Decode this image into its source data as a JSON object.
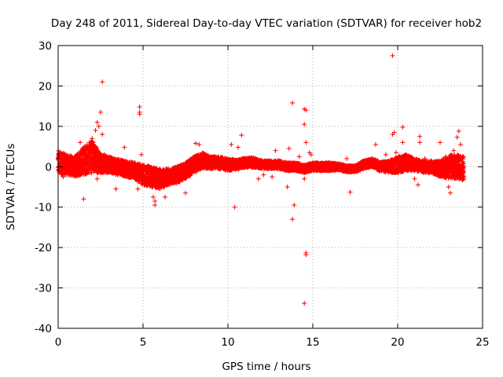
{
  "chart_data": {
    "type": "scatter",
    "title": "Day 248 of 2011, Sidereal Day-to-day VTEC variation (SDTVAR) for receiver hob2",
    "xlabel": "GPS time / hours",
    "ylabel": "SDTVAR / TECUs",
    "xlim": [
      0,
      25
    ],
    "ylim": [
      -40,
      30
    ],
    "xticks": [
      0,
      5,
      10,
      15,
      20,
      25
    ],
    "yticks": [
      -40,
      -30,
      -20,
      -10,
      0,
      10,
      20,
      30
    ],
    "xtick_labels": [
      "0",
      "5",
      "10",
      "15",
      "20",
      "25"
    ],
    "ytick_labels": [
      "-40",
      "-30",
      "-20",
      "-10",
      "0",
      "10",
      "20",
      "30"
    ],
    "grid": true,
    "marker": "+",
    "color": "#ff0000",
    "series": [
      {
        "name": "SDTVAR",
        "band_profile": {
          "x": [
            0.0,
            0.5,
            1.0,
            1.5,
            2.0,
            2.5,
            3.0,
            3.5,
            4.0,
            4.5,
            5.0,
            5.5,
            6.0,
            6.5,
            7.0,
            7.5,
            8.0,
            8.5,
            9.0,
            9.5,
            10.0,
            10.5,
            11.0,
            11.5,
            12.0,
            12.5,
            13.0,
            13.5,
            14.0,
            14.5,
            15.0,
            15.5,
            16.0,
            16.5,
            17.0,
            17.5,
            18.0,
            18.5,
            19.0,
            19.5,
            20.0,
            20.5,
            21.0,
            21.5,
            22.0,
            22.5,
            23.0,
            23.5,
            23.9
          ],
          "center": [
            1.0,
            0.5,
            0.0,
            1.5,
            2.5,
            1.0,
            0.5,
            0.0,
            -0.5,
            -1.0,
            -2.0,
            -2.5,
            -3.0,
            -2.5,
            -2.0,
            -1.0,
            0.5,
            1.5,
            1.0,
            1.0,
            0.5,
            0.5,
            1.0,
            1.0,
            0.5,
            0.5,
            0.5,
            0.0,
            0.0,
            -0.5,
            0.0,
            0.0,
            0.0,
            0.0,
            -0.5,
            -0.5,
            0.5,
            1.0,
            0.0,
            0.0,
            0.5,
            1.0,
            0.5,
            0.0,
            0.0,
            -0.5,
            0.0,
            0.0,
            -0.5
          ],
          "spread": [
            3.0,
            2.5,
            2.5,
            3.5,
            4.0,
            2.5,
            2.0,
            2.0,
            2.0,
            2.0,
            2.5,
            2.5,
            2.5,
            2.0,
            2.0,
            2.0,
            2.0,
            2.0,
            1.5,
            1.5,
            1.5,
            1.2,
            1.2,
            1.2,
            1.0,
            1.0,
            1.0,
            1.0,
            1.0,
            1.0,
            1.0,
            1.0,
            1.0,
            0.8,
            0.8,
            0.8,
            1.0,
            1.0,
            1.2,
            1.5,
            2.0,
            2.0,
            1.5,
            1.5,
            1.5,
            2.0,
            3.0,
            3.0,
            3.0
          ]
        },
        "outliers": [
          [
            0.1,
            3.5
          ],
          [
            0.3,
            -2.5
          ],
          [
            1.3,
            6.0
          ],
          [
            1.5,
            -8.0
          ],
          [
            2.0,
            7.0
          ],
          [
            2.2,
            9.0
          ],
          [
            2.3,
            11.0
          ],
          [
            2.4,
            10.0
          ],
          [
            2.5,
            13.5
          ],
          [
            2.6,
            21.0
          ],
          [
            2.6,
            8.0
          ],
          [
            2.3,
            -3.0
          ],
          [
            3.4,
            -5.5
          ],
          [
            3.9,
            4.8
          ],
          [
            4.8,
            14.8
          ],
          [
            4.8,
            13.5
          ],
          [
            4.8,
            13.0
          ],
          [
            4.9,
            3.0
          ],
          [
            4.7,
            -5.5
          ],
          [
            5.1,
            -4.5
          ],
          [
            5.6,
            -7.5
          ],
          [
            5.7,
            -9.5
          ],
          [
            5.7,
            -8.5
          ],
          [
            6.3,
            -7.5
          ],
          [
            7.5,
            -6.5
          ],
          [
            8.1,
            5.8
          ],
          [
            8.3,
            5.5
          ],
          [
            10.2,
            5.5
          ],
          [
            10.4,
            -10.0
          ],
          [
            10.6,
            4.8
          ],
          [
            10.8,
            7.8
          ],
          [
            11.1,
            1.5
          ],
          [
            11.8,
            -3.0
          ],
          [
            12.1,
            -2.0
          ],
          [
            12.6,
            -2.5
          ],
          [
            12.8,
            4.0
          ],
          [
            13.5,
            -5.0
          ],
          [
            13.8,
            15.8
          ],
          [
            13.9,
            -9.5
          ],
          [
            13.8,
            -13.0
          ],
          [
            13.6,
            4.5
          ],
          [
            14.5,
            14.3
          ],
          [
            14.6,
            14.0
          ],
          [
            14.5,
            10.5
          ],
          [
            14.6,
            6.0
          ],
          [
            14.6,
            -21.3
          ],
          [
            14.6,
            -21.8
          ],
          [
            14.5,
            -33.8
          ],
          [
            14.8,
            3.5
          ],
          [
            14.9,
            3.0
          ],
          [
            14.2,
            2.5
          ],
          [
            14.5,
            -3.0
          ],
          [
            17.2,
            -6.3
          ],
          [
            17.0,
            2.0
          ],
          [
            18.7,
            5.5
          ],
          [
            19.3,
            3.0
          ],
          [
            19.7,
            27.5
          ],
          [
            19.8,
            8.5
          ],
          [
            19.7,
            8.0
          ],
          [
            19.9,
            3.5
          ],
          [
            20.3,
            9.8
          ],
          [
            20.3,
            6.0
          ],
          [
            20.1,
            2.5
          ],
          [
            21.0,
            -3.0
          ],
          [
            21.3,
            7.5
          ],
          [
            21.3,
            6.0
          ],
          [
            21.2,
            -4.5
          ],
          [
            21.6,
            2.0
          ],
          [
            22.5,
            6.0
          ],
          [
            23.0,
            -5.0
          ],
          [
            23.1,
            -6.5
          ],
          [
            23.5,
            7.3
          ],
          [
            23.6,
            8.8
          ],
          [
            23.7,
            5.5
          ],
          [
            23.3,
            4.0
          ],
          [
            23.9,
            -3.0
          ]
        ]
      }
    ]
  }
}
